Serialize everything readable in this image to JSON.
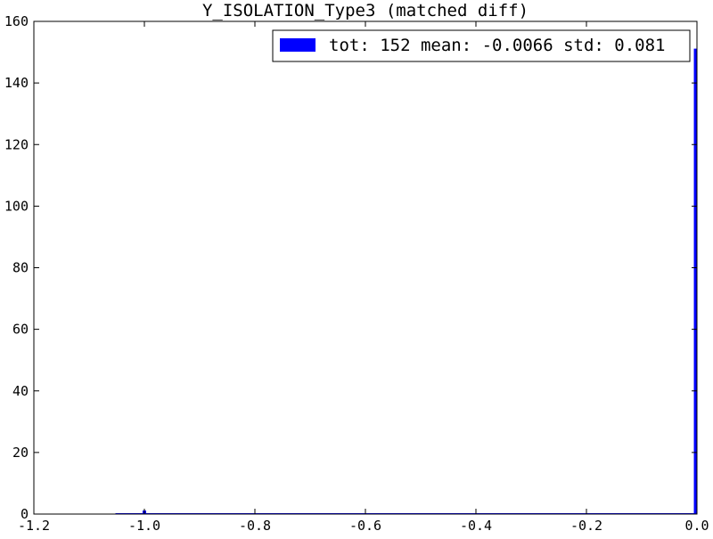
{
  "chart_data": {
    "type": "bar",
    "title": "Y_ISOLATION_Type3 (matched diff)",
    "xlabel": "",
    "ylabel": "",
    "xlim": [
      -1.2,
      0.0
    ],
    "ylim": [
      0,
      160
    ],
    "x_ticks": [
      "-1.2",
      "-1.0",
      "-0.8",
      "-0.6",
      "-0.4",
      "-0.2",
      "0.0"
    ],
    "y_ticks": [
      "0",
      "20",
      "40",
      "60",
      "80",
      "100",
      "120",
      "140",
      "160"
    ],
    "grid": false,
    "legend_position": "top-right",
    "series": [
      {
        "name": "tot: 152 mean: -0.0066 std: 0.081",
        "color": "#0000ff",
        "bins": [
          {
            "x0": -1.0024,
            "x1": -0.9976,
            "count": 1
          },
          {
            "x0": -0.0048,
            "x1": 0.0,
            "count": 151
          }
        ]
      }
    ]
  }
}
